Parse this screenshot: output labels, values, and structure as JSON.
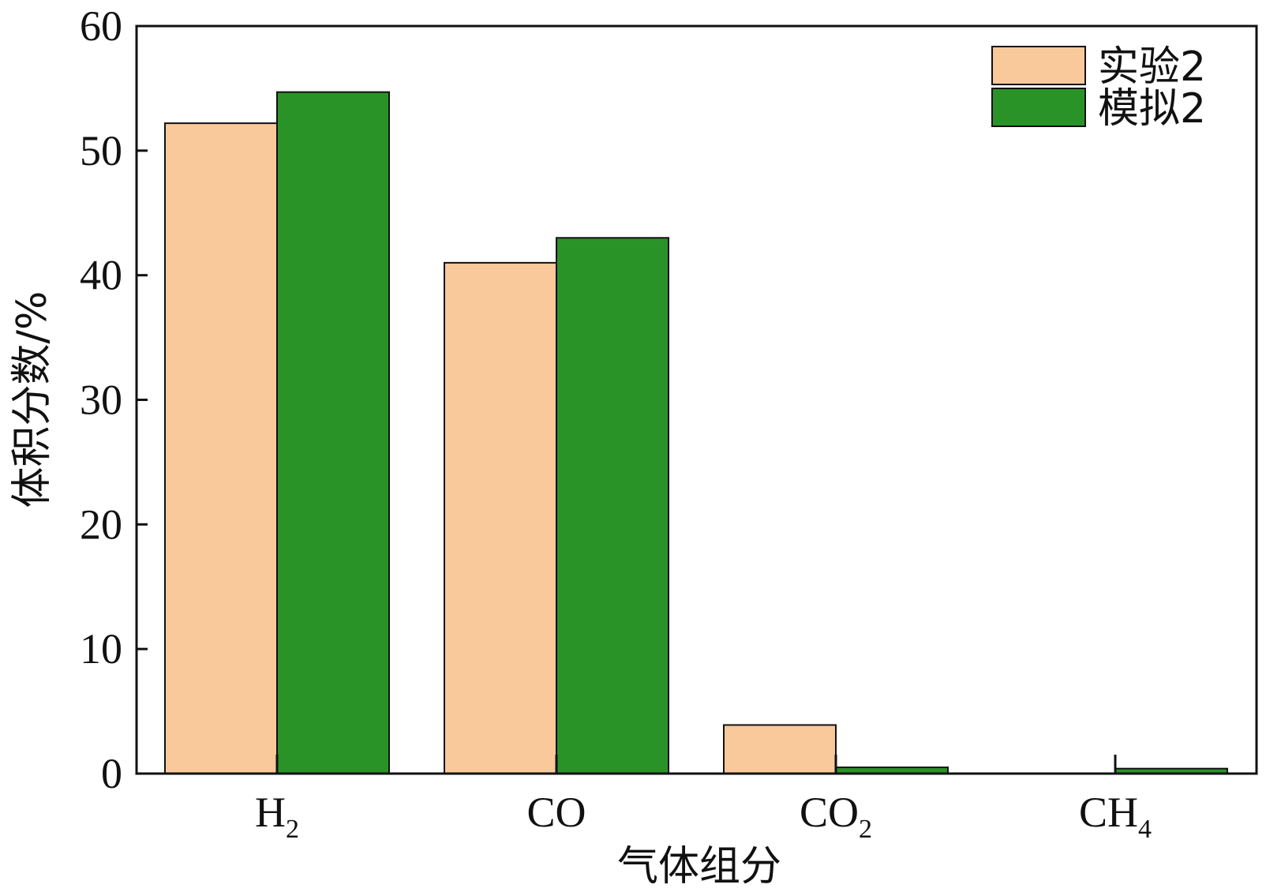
{
  "chart_data": {
    "type": "bar",
    "xlabel": "气体组分",
    "ylabel": "体积分数/%",
    "ylim": [
      0,
      60
    ],
    "yticks": [
      0,
      10,
      20,
      30,
      40,
      50,
      60
    ],
    "grid": false,
    "legend_position": "top-right",
    "categories": [
      {
        "base": "H",
        "sub": "2"
      },
      {
        "base": "CO",
        "sub": ""
      },
      {
        "base": "CO",
        "sub": "2"
      },
      {
        "base": "CH",
        "sub": "4"
      }
    ],
    "series": [
      {
        "name": "实验2",
        "color": "#f9c99b",
        "values": [
          52.2,
          41.0,
          3.9,
          0
        ]
      },
      {
        "name": "模拟2",
        "color": "#2a9328",
        "values": [
          54.7,
          43.0,
          0.5,
          0.4
        ]
      }
    ]
  }
}
